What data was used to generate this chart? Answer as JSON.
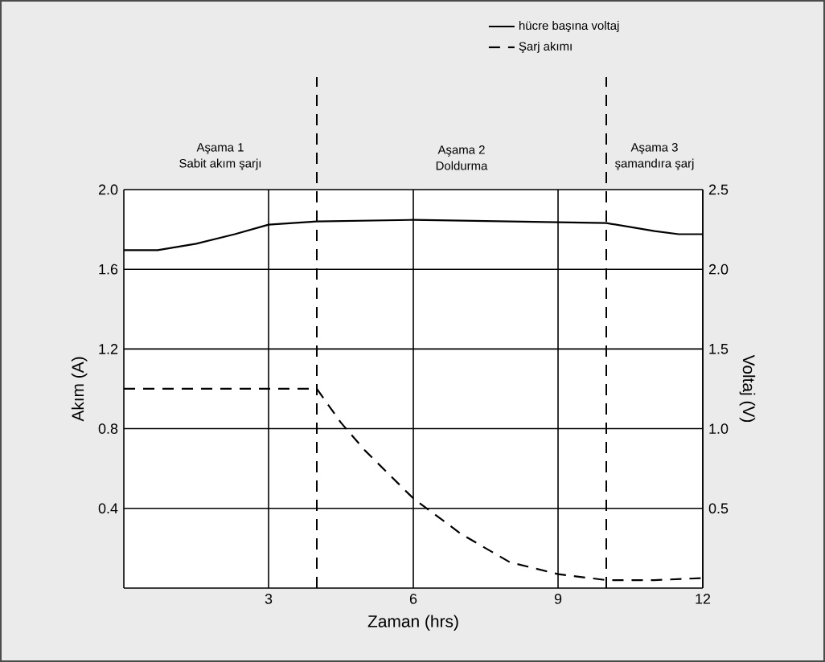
{
  "chart_data": {
    "type": "line",
    "xlabel": "Zaman (hrs)",
    "ylabel": "Akım (A)",
    "y2label": "Voltaj (V)",
    "xlim": [
      0,
      12
    ],
    "xticks": [
      3,
      6,
      9,
      12
    ],
    "ylim": [
      0,
      2.0
    ],
    "yticks": [
      0.4,
      0.8,
      1.2,
      1.6,
      {
        "value": 2,
        "label": "2.0"
      }
    ],
    "y2lim": [
      0,
      2.5
    ],
    "y2ticks": [
      0.5,
      {
        "value": 1,
        "label": "1.0"
      },
      1.5,
      {
        "value": 2,
        "label": "2.0"
      },
      2.5
    ],
    "grid": true,
    "legend": "top right",
    "series": [
      {
        "name": "hücre başına voltaj",
        "color": "#000000",
        "axis": "y2",
        "line_style": "solid",
        "x": [
          0,
          0.7,
          1.5,
          2.3,
          3,
          4,
          6,
          8,
          10,
          11,
          11.5,
          12
        ],
        "values": [
          2.12,
          2.12,
          2.16,
          2.22,
          2.28,
          2.3,
          2.31,
          2.3,
          2.29,
          2.24,
          2.22,
          2.22
        ]
      },
      {
        "name": "Şarj akımı",
        "color": "#000000",
        "line_style": "dashed",
        "x": [
          0,
          1,
          2,
          3,
          4,
          4.5,
          5,
          6,
          7,
          8,
          9,
          10,
          11,
          12
        ],
        "values": [
          1.0,
          1.0,
          1.0,
          1.0,
          1.0,
          0.83,
          0.69,
          0.45,
          0.27,
          0.13,
          0.07,
          0.04,
          0.04,
          0.05
        ]
      }
    ],
    "ref_lines": [
      {
        "axis": "x",
        "value": 4,
        "line_style": "dashed"
      },
      {
        "axis": "x",
        "value": 10,
        "line_style": "dashed"
      }
    ],
    "annotations": [
      "Aşama 1\nSabit akım şarjı",
      "Aşama 2\nDoldurma",
      "Aşama 3\nşamandıra şarj"
    ]
  }
}
